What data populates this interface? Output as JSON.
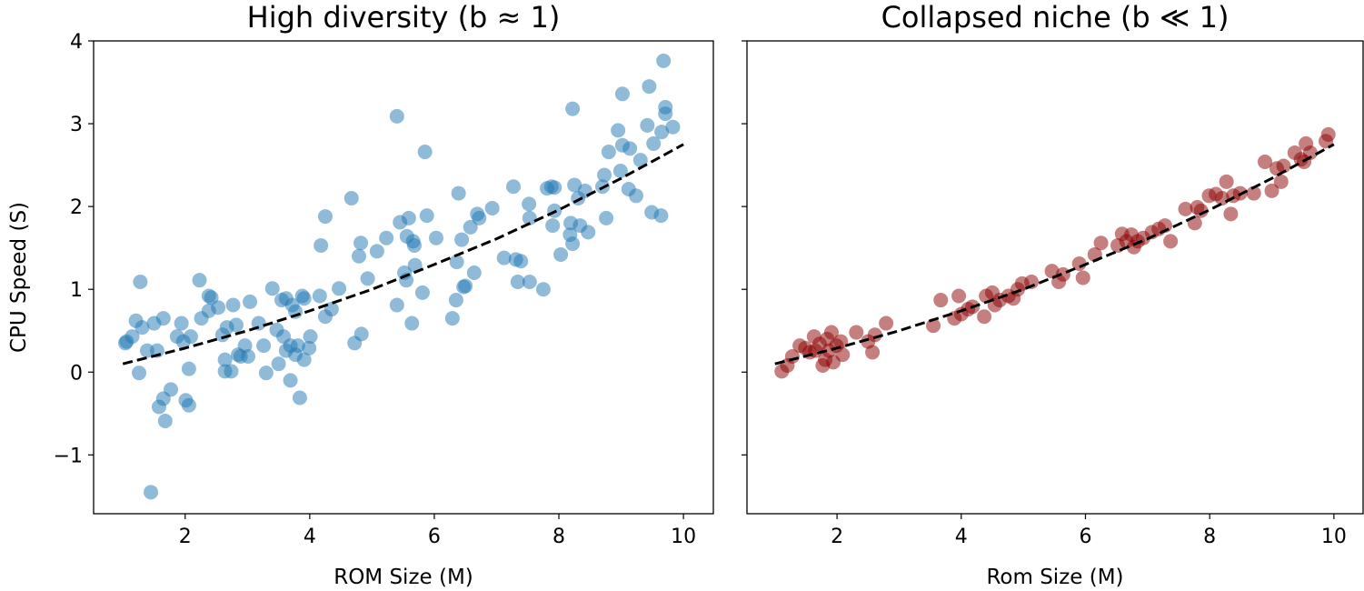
{
  "chart_data": [
    {
      "type": "scatter",
      "title": "High diversity (b ≈ 1)",
      "xlabel": "ROM Size (M)",
      "ylabel": "CPU Speed (S)",
      "xlim": [
        0.53,
        10.48
      ],
      "ylim": [
        -1.71,
        4.0
      ],
      "xticks": [
        2,
        4,
        6,
        8,
        10
      ],
      "yticks": [
        -1,
        0,
        1,
        2,
        3,
        4
      ],
      "ytick_labels": [
        "−1",
        "0",
        "1",
        "2",
        "3",
        "4"
      ],
      "grid": false,
      "point_color": "#1f77b4",
      "point_alpha": 0.5,
      "points": [
        [
          1.04,
          0.35
        ],
        [
          1.06,
          0.37
        ],
        [
          1.28,
          1.09
        ],
        [
          1.21,
          0.62
        ],
        [
          1.31,
          0.54
        ],
        [
          1.15,
          0.43
        ],
        [
          1.26,
          -0.01
        ],
        [
          1.39,
          0.26
        ],
        [
          1.5,
          0.59
        ],
        [
          1.55,
          0.26
        ],
        [
          1.65,
          0.65
        ],
        [
          1.45,
          -1.45
        ],
        [
          1.58,
          -0.42
        ],
        [
          1.65,
          -0.32
        ],
        [
          1.68,
          -0.59
        ],
        [
          1.77,
          -0.21
        ],
        [
          1.87,
          0.43
        ],
        [
          1.94,
          0.59
        ],
        [
          1.97,
          0.37
        ],
        [
          2.01,
          -0.34
        ],
        [
          2.06,
          -0.4
        ],
        [
          2.09,
          0.43
        ],
        [
          2.06,
          0.04
        ],
        [
          2.23,
          1.11
        ],
        [
          2.26,
          0.65
        ],
        [
          2.38,
          0.92
        ],
        [
          2.42,
          0.9
        ],
        [
          2.38,
          0.74
        ],
        [
          2.53,
          0.78
        ],
        [
          2.6,
          0.45
        ],
        [
          2.64,
          0.01
        ],
        [
          2.64,
          0.15
        ],
        [
          2.67,
          0.54
        ],
        [
          2.74,
          0.01
        ],
        [
          2.77,
          0.81
        ],
        [
          2.82,
          0.57
        ],
        [
          2.85,
          0.21
        ],
        [
          2.89,
          0.19
        ],
        [
          2.96,
          0.32
        ],
        [
          3.01,
          0.19
        ],
        [
          3.04,
          0.85
        ],
        [
          3.18,
          0.59
        ],
        [
          3.26,
          0.32
        ],
        [
          3.3,
          -0.01
        ],
        [
          3.4,
          1.01
        ],
        [
          3.47,
          0.51
        ],
        [
          3.5,
          0.1
        ],
        [
          3.55,
          0.87
        ],
        [
          3.58,
          0.43
        ],
        [
          3.62,
          0.89
        ],
        [
          3.62,
          0.26
        ],
        [
          3.69,
          0.32
        ],
        [
          3.69,
          -0.1
        ],
        [
          3.72,
          0.81
        ],
        [
          3.77,
          0.73
        ],
        [
          3.77,
          0.21
        ],
        [
          3.81,
          0.32
        ],
        [
          3.84,
          -0.31
        ],
        [
          3.88,
          0.92
        ],
        [
          3.91,
          0.15
        ],
        [
          3.91,
          0.89
        ],
        [
          3.99,
          0.29
        ],
        [
          4.01,
          0.43
        ],
        [
          4.16,
          0.92
        ],
        [
          4.18,
          1.53
        ],
        [
          4.25,
          1.88
        ],
        [
          4.25,
          0.67
        ],
        [
          4.35,
          0.76
        ],
        [
          4.47,
          1.01
        ],
        [
          4.67,
          2.1
        ],
        [
          4.72,
          0.35
        ],
        [
          4.79,
          1.4
        ],
        [
          4.82,
          1.56
        ],
        [
          4.83,
          0.46
        ],
        [
          4.93,
          1.13
        ],
        [
          5.08,
          1.46
        ],
        [
          5.23,
          1.62
        ],
        [
          5.4,
          3.09
        ],
        [
          5.4,
          0.81
        ],
        [
          5.45,
          1.81
        ],
        [
          5.52,
          1.2
        ],
        [
          5.55,
          1.11
        ],
        [
          5.56,
          1.64
        ],
        [
          5.59,
          1.86
        ],
        [
          5.64,
          0.59
        ],
        [
          5.66,
          1.58
        ],
        [
          5.68,
          1.53
        ],
        [
          5.69,
          1.29
        ],
        [
          5.81,
          0.96
        ],
        [
          5.85,
          2.66
        ],
        [
          5.88,
          1.89
        ],
        [
          6.03,
          1.62
        ],
        [
          6.29,
          0.65
        ],
        [
          6.35,
          0.87
        ],
        [
          6.36,
          1.33
        ],
        [
          6.39,
          2.16
        ],
        [
          6.44,
          1.6
        ],
        [
          6.47,
          1.03
        ],
        [
          6.5,
          1.04
        ],
        [
          6.58,
          1.75
        ],
        [
          6.64,
          1.2
        ],
        [
          6.69,
          1.91
        ],
        [
          6.72,
          1.86
        ],
        [
          6.93,
          1.98
        ],
        [
          7.12,
          1.38
        ],
        [
          7.27,
          2.24
        ],
        [
          7.31,
          1.36
        ],
        [
          7.34,
          1.09
        ],
        [
          7.39,
          1.34
        ],
        [
          7.52,
          2.03
        ],
        [
          7.53,
          1.86
        ],
        [
          7.53,
          1.09
        ],
        [
          7.75,
          1.0
        ],
        [
          7.81,
          2.22
        ],
        [
          7.88,
          2.24
        ],
        [
          7.93,
          1.95
        ],
        [
          7.9,
          1.77
        ],
        [
          7.93,
          2.23
        ],
        [
          8.03,
          1.42
        ],
        [
          8.18,
          1.66
        ],
        [
          8.19,
          1.8
        ],
        [
          8.22,
          3.18
        ],
        [
          8.22,
          1.55
        ],
        [
          8.25,
          2.26
        ],
        [
          8.31,
          2.1
        ],
        [
          8.34,
          1.77
        ],
        [
          8.42,
          2.19
        ],
        [
          8.47,
          1.69
        ],
        [
          8.7,
          2.24
        ],
        [
          8.73,
          2.38
        ],
        [
          8.76,
          1.86
        ],
        [
          8.8,
          2.66
        ],
        [
          8.95,
          2.92
        ],
        [
          8.99,
          2.43
        ],
        [
          9.02,
          3.36
        ],
        [
          9.02,
          2.74
        ],
        [
          9.12,
          2.21
        ],
        [
          9.14,
          2.7
        ],
        [
          9.24,
          2.13
        ],
        [
          9.31,
          2.56
        ],
        [
          9.42,
          2.98
        ],
        [
          9.45,
          3.45
        ],
        [
          9.49,
          1.93
        ],
        [
          9.52,
          2.76
        ],
        [
          9.64,
          1.89
        ],
        [
          9.65,
          2.9
        ],
        [
          9.68,
          3.76
        ],
        [
          9.71,
          3.2
        ],
        [
          9.71,
          3.12
        ],
        [
          9.83,
          2.96
        ]
      ],
      "fit_line": {
        "style": "dashed",
        "color": "#000000",
        "x": [
          1,
          2,
          3,
          4,
          5,
          6,
          7,
          8,
          9,
          10
        ],
        "y": [
          0.1,
          0.29,
          0.5,
          0.74,
          1.0,
          1.3,
          1.61,
          1.96,
          2.34,
          2.75
        ]
      }
    },
    {
      "type": "scatter",
      "title": "Collapsed niche (b ≪ 1)",
      "xlabel": "Rom Size (M)",
      "ylabel": "",
      "xlim": [
        0.55,
        10.47
      ],
      "ylim": [
        -1.71,
        4.0
      ],
      "xticks": [
        2,
        4,
        6,
        8,
        10
      ],
      "yticks": [
        -1,
        0,
        1,
        2,
        3,
        4
      ],
      "ytick_labels": [],
      "grid": false,
      "point_color": "#8b0000",
      "point_alpha": 0.5,
      "points": [
        [
          1.11,
          0.01
        ],
        [
          1.2,
          0.08
        ],
        [
          1.28,
          0.19
        ],
        [
          1.4,
          0.32
        ],
        [
          1.49,
          0.29
        ],
        [
          1.56,
          0.24
        ],
        [
          1.63,
          0.43
        ],
        [
          1.65,
          0.26
        ],
        [
          1.72,
          0.34
        ],
        [
          1.77,
          0.08
        ],
        [
          1.81,
          0.15
        ],
        [
          1.84,
          0.4
        ],
        [
          1.87,
          0.26
        ],
        [
          1.91,
          0.48
        ],
        [
          1.94,
          0.12
        ],
        [
          1.99,
          0.32
        ],
        [
          2.06,
          0.37
        ],
        [
          2.09,
          0.21
        ],
        [
          2.31,
          0.48
        ],
        [
          2.5,
          0.37
        ],
        [
          2.57,
          0.24
        ],
        [
          2.61,
          0.45
        ],
        [
          2.79,
          0.59
        ],
        [
          3.55,
          0.56
        ],
        [
          3.67,
          0.87
        ],
        [
          3.89,
          0.65
        ],
        [
          3.96,
          0.92
        ],
        [
          4.0,
          0.7
        ],
        [
          4.11,
          0.76
        ],
        [
          4.18,
          0.79
        ],
        [
          4.37,
          0.67
        ],
        [
          4.4,
          0.92
        ],
        [
          4.5,
          0.96
        ],
        [
          4.54,
          0.81
        ],
        [
          4.62,
          0.87
        ],
        [
          4.76,
          0.92
        ],
        [
          4.84,
          0.89
        ],
        [
          4.91,
          1.0
        ],
        [
          4.98,
          1.07
        ],
        [
          5.13,
          1.09
        ],
        [
          5.46,
          1.22
        ],
        [
          5.57,
          1.09
        ],
        [
          5.64,
          1.18
        ],
        [
          5.9,
          1.31
        ],
        [
          5.96,
          1.14
        ],
        [
          6.15,
          1.42
        ],
        [
          6.25,
          1.56
        ],
        [
          6.52,
          1.53
        ],
        [
          6.59,
          1.67
        ],
        [
          6.66,
          1.58
        ],
        [
          6.74,
          1.66
        ],
        [
          6.78,
          1.51
        ],
        [
          6.84,
          1.58
        ],
        [
          6.93,
          1.62
        ],
        [
          7.07,
          1.69
        ],
        [
          7.18,
          1.73
        ],
        [
          7.28,
          1.77
        ],
        [
          7.37,
          1.58
        ],
        [
          7.61,
          1.97
        ],
        [
          7.76,
          1.8
        ],
        [
          7.8,
          1.99
        ],
        [
          7.86,
          1.95
        ],
        [
          7.99,
          2.13
        ],
        [
          8.1,
          2.15
        ],
        [
          8.2,
          2.1
        ],
        [
          8.27,
          2.3
        ],
        [
          8.34,
          1.91
        ],
        [
          8.38,
          2.13
        ],
        [
          8.49,
          2.16
        ],
        [
          8.71,
          2.16
        ],
        [
          8.89,
          2.54
        ],
        [
          9.0,
          2.19
        ],
        [
          9.08,
          2.46
        ],
        [
          9.15,
          2.3
        ],
        [
          9.19,
          2.49
        ],
        [
          9.37,
          2.65
        ],
        [
          9.47,
          2.57
        ],
        [
          9.52,
          2.54
        ],
        [
          9.55,
          2.76
        ],
        [
          9.62,
          2.65
        ],
        [
          9.87,
          2.79
        ],
        [
          9.91,
          2.87
        ]
      ],
      "fit_line": {
        "style": "dashed",
        "color": "#000000",
        "x": [
          1,
          2,
          3,
          4,
          5,
          6,
          7,
          8,
          9,
          10
        ],
        "y": [
          0.1,
          0.29,
          0.5,
          0.74,
          1.0,
          1.3,
          1.61,
          1.96,
          2.34,
          2.75
        ]
      }
    }
  ]
}
